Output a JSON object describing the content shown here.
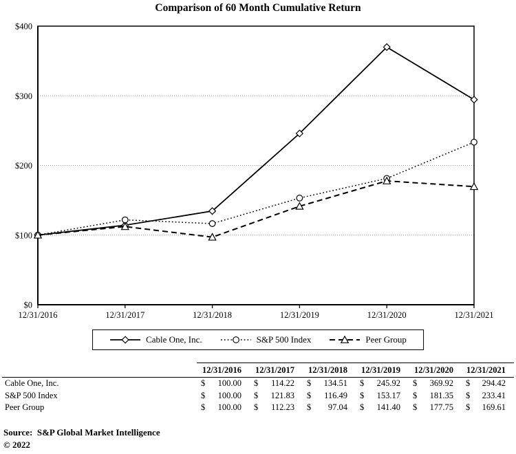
{
  "title": "Comparison of 60 Month Cumulative Return",
  "chart_data": {
    "type": "line",
    "title": "Comparison of 60 Month Cumulative Return",
    "categories": [
      "12/31/2016",
      "12/31/2017",
      "12/31/2018",
      "12/31/2019",
      "12/31/2020",
      "12/31/2021"
    ],
    "series": [
      {
        "name": "Cable One, Inc.",
        "values": [
          100.0,
          114.22,
          134.51,
          245.92,
          369.92,
          294.42
        ],
        "line": "solid",
        "marker": "diamond"
      },
      {
        "name": "S&P 500 Index",
        "values": [
          100.0,
          121.83,
          116.49,
          153.17,
          181.35,
          233.41
        ],
        "line": "dotted",
        "marker": "circle"
      },
      {
        "name": "Peer Group",
        "values": [
          100.0,
          112.23,
          97.04,
          141.4,
          177.75,
          169.61
        ],
        "line": "dashed",
        "marker": "triangle"
      }
    ],
    "xlabel": "",
    "ylabel": "",
    "ylim": [
      0,
      400
    ],
    "yticks": [
      0,
      100,
      200,
      300,
      400
    ],
    "ytick_labels": [
      "$0",
      "$100",
      "$200",
      "$300",
      "$400"
    ],
    "grid": "horizontal-dotted",
    "legend_position": "bottom",
    "colors": {
      "line": "#000000",
      "grid": "#999999",
      "background": "#ffffff"
    }
  },
  "table": {
    "currency": "$",
    "columns": [
      "12/31/2016",
      "12/31/2017",
      "12/31/2018",
      "12/31/2019",
      "12/31/2020",
      "12/31/2021"
    ],
    "rows": [
      {
        "label": "Cable One, Inc.",
        "values": [
          "100.00",
          "114.22",
          "134.51",
          "245.92",
          "369.92",
          "294.42"
        ]
      },
      {
        "label": "S&P 500 Index",
        "values": [
          "100.00",
          "121.83",
          "116.49",
          "153.17",
          "181.35",
          "233.41"
        ]
      },
      {
        "label": "Peer Group",
        "values": [
          "100.00",
          "112.23",
          "97.04",
          "141.40",
          "177.75",
          "169.61"
        ]
      }
    ]
  },
  "footer": {
    "source": "Source:  S&P Global Market Intelligence",
    "copyright": "© 2022"
  }
}
